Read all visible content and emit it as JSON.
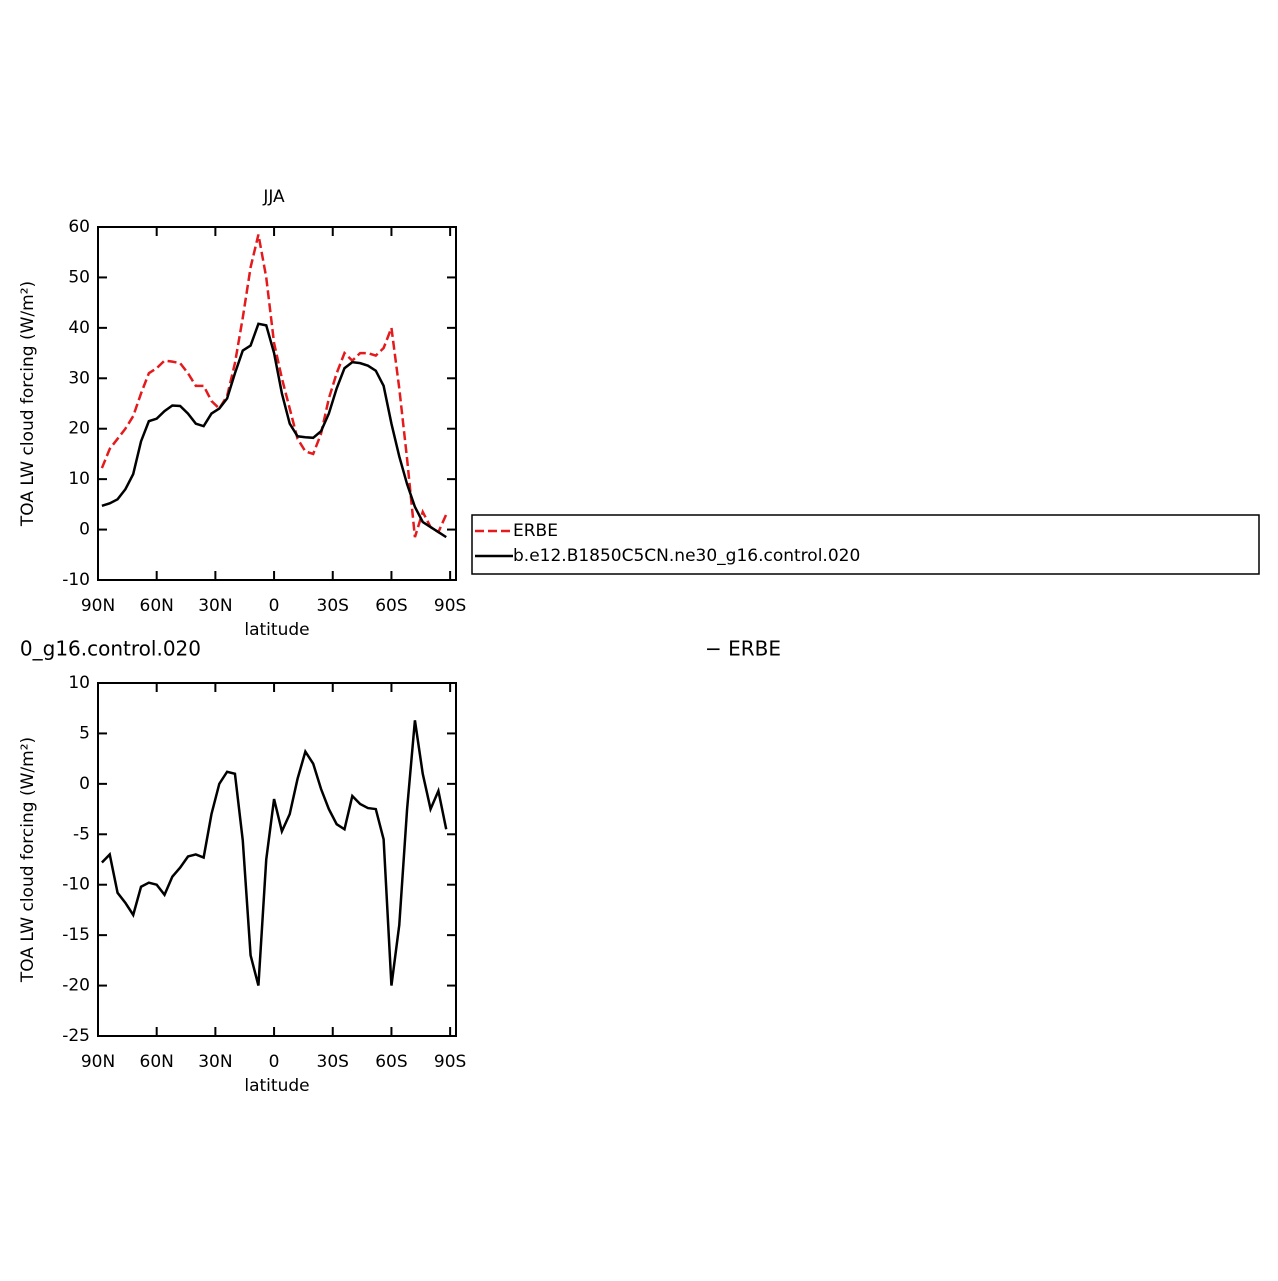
{
  "chart_data": [
    {
      "type": "line",
      "title": "JJA",
      "xlabel": "latitude",
      "ylabel": "TOA LW cloud forcing (W/m²)",
      "x": [
        88,
        84,
        80,
        76,
        72,
        68,
        64,
        60,
        56,
        52,
        48,
        44,
        40,
        36,
        32,
        28,
        24,
        20,
        16,
        12,
        8,
        4,
        0,
        -4,
        -8,
        -12,
        -16,
        -20,
        -24,
        -28,
        -32,
        -36,
        -40,
        -44,
        -48,
        -52,
        -56,
        -60,
        -64,
        -68,
        -72,
        -76,
        -80,
        -84,
        -88
      ],
      "xlim": [
        90,
        -93
      ],
      "xticks": [
        {
          "value": 90,
          "label": "90N"
        },
        {
          "value": 60,
          "label": "60N"
        },
        {
          "value": 30,
          "label": "30N"
        },
        0,
        {
          "value": -30,
          "label": "30S"
        },
        {
          "value": -60,
          "label": "60S"
        },
        {
          "value": -90,
          "label": "90S"
        }
      ],
      "ylim": [
        -10,
        60
      ],
      "yticks": [
        -10,
        0,
        10,
        20,
        30,
        40,
        50,
        60
      ],
      "legend": "right",
      "series": [
        {
          "name": "ERBE",
          "color": "#e41a1c",
          "linestyle": "dashed",
          "values": [
            12.2,
            16,
            18,
            20,
            22.5,
            27,
            31,
            32,
            33.5,
            33.3,
            33,
            31,
            28.5,
            28.5,
            25.5,
            24,
            26.5,
            33,
            42,
            52,
            58.5,
            50,
            37,
            30,
            24,
            18,
            15.5,
            15,
            19,
            26,
            31,
            35,
            33.5,
            35,
            35,
            34.5,
            36,
            40,
            28,
            14,
            -1.5,
            3.5,
            0.5,
            -0.5,
            3
          ]
        },
        {
          "name": "b.e12.B1850C5CN.ne30_g16.control.020",
          "color": "#000000",
          "linestyle": "solid",
          "values": [
            4.7,
            5.2,
            6,
            8,
            11,
            17.5,
            21.5,
            22,
            23.5,
            24.6,
            24.5,
            23,
            21,
            20.5,
            23,
            24,
            26,
            31,
            35.5,
            36.5,
            40.8,
            40.5,
            35,
            27,
            21,
            18.5,
            18.3,
            18.2,
            19.5,
            23,
            28,
            32,
            33.2,
            33,
            32.5,
            31.5,
            28.5,
            21,
            14.5,
            9,
            4.5,
            1.5,
            0.5,
            -0.5,
            -1.5
          ]
        }
      ]
    },
    {
      "type": "line",
      "title_left": "0_g16.control.020",
      "title_right": "− ERBE",
      "xlabel": "latitude",
      "ylabel": "TOA LW cloud forcing (W/m²)",
      "x": [
        88,
        84,
        80,
        76,
        72,
        68,
        64,
        60,
        56,
        52,
        48,
        44,
        40,
        36,
        32,
        28,
        24,
        20,
        16,
        12,
        8,
        4,
        0,
        -4,
        -8,
        -12,
        -16,
        -20,
        -24,
        -28,
        -32,
        -36,
        -40,
        -44,
        -48,
        -52,
        -56,
        -60,
        -64,
        -68,
        -72,
        -76,
        -80,
        -84,
        -88
      ],
      "xlim": [
        90,
        -93
      ],
      "xticks": [
        {
          "value": 90,
          "label": "90N"
        },
        {
          "value": 60,
          "label": "60N"
        },
        {
          "value": 30,
          "label": "30N"
        },
        0,
        {
          "value": -30,
          "label": "30S"
        },
        {
          "value": -60,
          "label": "60S"
        },
        {
          "value": -90,
          "label": "90S"
        }
      ],
      "ylim": [
        -25,
        10
      ],
      "yticks": [
        -25,
        -20,
        -15,
        -10,
        -5,
        0,
        5,
        10
      ],
      "series": [
        {
          "color": "#000000",
          "linestyle": "solid",
          "values": [
            -7.8,
            -7,
            -10.8,
            -11.8,
            -13,
            -10.2,
            -9.8,
            -10,
            -11,
            -9.2,
            -8.3,
            -7.2,
            -7,
            -7.3,
            -3,
            0,
            1.2,
            1,
            -5.6,
            -17,
            -20,
            -7.5,
            -1.5,
            -4.7,
            -3,
            0.5,
            3.2,
            2,
            -0.5,
            -2.5,
            -4,
            -4.5,
            -1.2,
            -2,
            -2.4,
            -2.5,
            -5.5,
            -20,
            -14,
            -2.5,
            6.3,
            1,
            -2.5,
            -0.7,
            -4.5
          ]
        }
      ]
    }
  ]
}
